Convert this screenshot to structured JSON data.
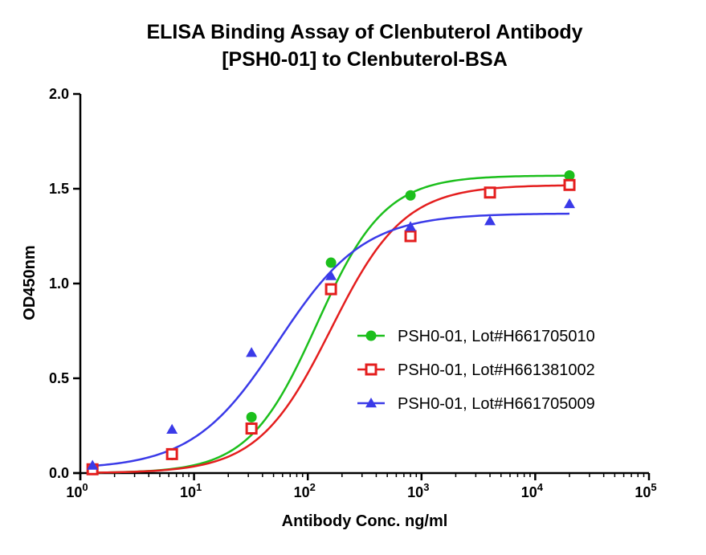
{
  "chart_data": {
    "type": "scatter",
    "title_lines": [
      "ELISA Binding Assay of Clenbuterol Antibody",
      "[PSH0-01] to Clenbuterol-BSA"
    ],
    "xlabel": "Antibody Conc. ng/ml",
    "ylabel": "OD450nm",
    "xscale": "log",
    "xlim": [
      1,
      100000
    ],
    "ylim": [
      0,
      2.0
    ],
    "yticks": [
      0.0,
      0.5,
      1.0,
      1.5,
      2.0
    ],
    "ytick_labels": [
      "0.0",
      "0.5",
      "1.0",
      "1.5",
      "2.0"
    ],
    "xticks": [
      {
        "value": 1,
        "base": "10",
        "exp": "0"
      },
      {
        "value": 10,
        "base": "10",
        "exp": "1"
      },
      {
        "value": 100,
        "base": "10",
        "exp": "2"
      },
      {
        "value": 1000,
        "base": "10",
        "exp": "3"
      },
      {
        "value": 10000,
        "base": "10",
        "exp": "4"
      },
      {
        "value": 100000,
        "base": "10",
        "exp": "5"
      }
    ],
    "grid": false,
    "legend_position": "center-right",
    "series": [
      {
        "name": "PSH0-01,  Lot#H661705010",
        "color": "#1cbf1c",
        "marker": "circle",
        "x": [
          1.28,
          6.4,
          32,
          160,
          800,
          4000,
          20000
        ],
        "y": [
          0.025,
          0.095,
          0.295,
          1.11,
          1.465,
          1.48,
          1.57
        ],
        "fit": {
          "bottom": 0.0,
          "top": 1.57,
          "ec50": 120,
          "hill": 1.45
        }
      },
      {
        "name": "PSH0-01,  Lot#H661381002",
        "color": "#e41e1e",
        "marker": "square-open",
        "x": [
          1.28,
          6.4,
          32,
          160,
          800,
          4000,
          20000
        ],
        "y": [
          0.02,
          0.1,
          0.235,
          0.97,
          1.25,
          1.48,
          1.52
        ],
        "fit": {
          "bottom": 0.0,
          "top": 1.52,
          "ec50": 160,
          "hill": 1.35
        }
      },
      {
        "name": "PSH0-01,  Lot#H661705009",
        "color": "#3a3ae8",
        "marker": "triangle",
        "x": [
          1.28,
          6.4,
          32,
          160,
          800,
          4000,
          20000
        ],
        "y": [
          0.04,
          0.23,
          0.635,
          1.04,
          1.3,
          1.33,
          1.42
        ],
        "fit": {
          "bottom": 0.02,
          "top": 1.37,
          "ec50": 55,
          "hill": 1.15
        }
      }
    ]
  }
}
